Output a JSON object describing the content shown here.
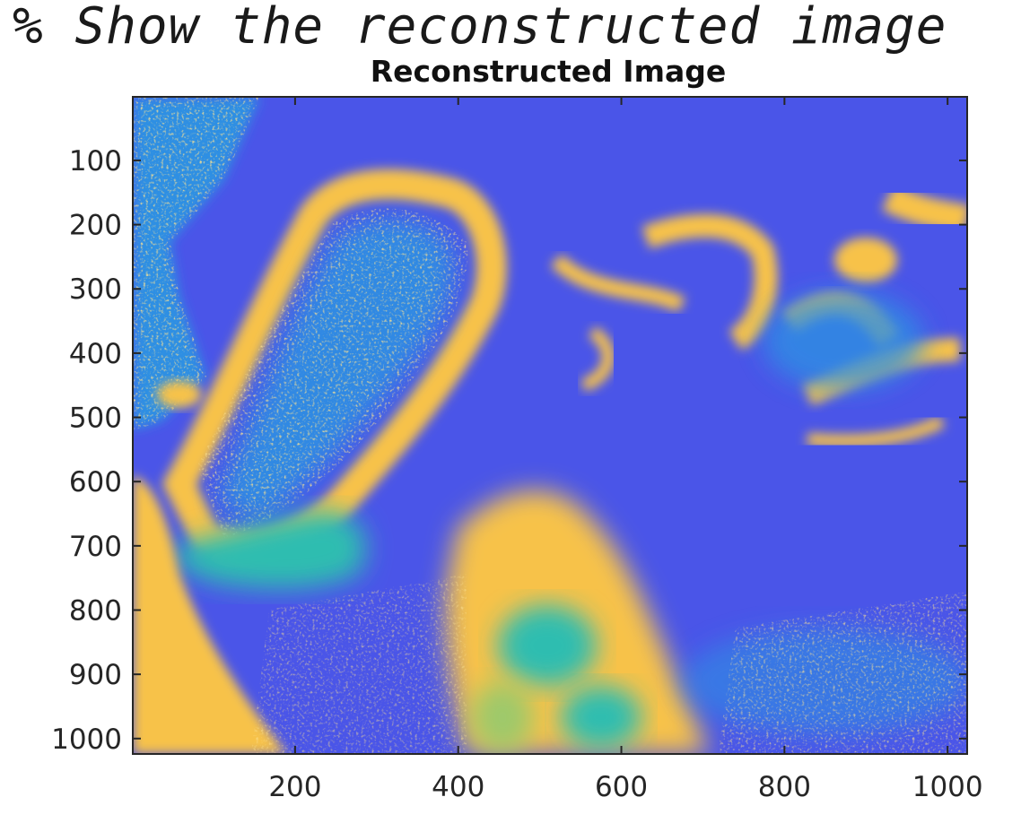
{
  "code_comment": "% Show the reconstructed image",
  "chart_data": {
    "type": "heatmap",
    "title": "Reconstructed Image",
    "xlabel": "",
    "ylabel": "",
    "xlim": [
      1,
      1024
    ],
    "ylim": [
      1,
      1024
    ],
    "y_axis_direction": "reversed",
    "x_ticks": [
      200,
      400,
      600,
      800,
      1000
    ],
    "y_ticks": [
      100,
      200,
      300,
      400,
      500,
      600,
      700,
      800,
      900,
      1000
    ],
    "colormap": "parula",
    "colors": {
      "low": "#4a55e8",
      "mid_low": "#2f8fe3",
      "mid": "#2fbdb0",
      "mid_high": "#9ec96a",
      "high": "#f7c24a"
    }
  }
}
